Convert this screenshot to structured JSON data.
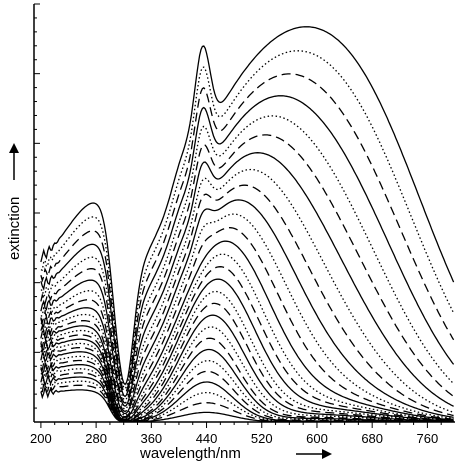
{
  "chart_data": {
    "type": "line",
    "xlabel": "wavelength/nm",
    "ylabel": "extinction",
    "xlim": [
      190,
      800
    ],
    "ylim": [
      0,
      1.0
    ],
    "x_ticks": [
      200,
      280,
      360,
      440,
      520,
      600,
      680,
      760
    ],
    "y_tick_labels_shown": false,
    "grid": false,
    "legend": "none",
    "line_color": "#000000",
    "line_styles_cycle": [
      "solid",
      "dashed",
      "dotted"
    ],
    "series_count": 28,
    "series": [
      {
        "peak_nm": 440,
        "peak_value": 0.023,
        "uv_value": 0.07,
        "style": "solid"
      },
      {
        "peak_nm": 440,
        "peak_value": 0.046,
        "uv_value": 0.08,
        "style": "dashed"
      },
      {
        "peak_nm": 440,
        "peak_value": 0.07,
        "uv_value": 0.089,
        "style": "dotted"
      },
      {
        "peak_nm": 440,
        "peak_value": 0.095,
        "uv_value": 0.098,
        "style": "solid"
      },
      {
        "peak_nm": 441,
        "peak_value": 0.12,
        "uv_value": 0.107,
        "style": "dashed"
      },
      {
        "peak_nm": 442,
        "peak_value": 0.145,
        "uv_value": 0.116,
        "style": "dotted"
      },
      {
        "peak_nm": 443,
        "peak_value": 0.171,
        "uv_value": 0.125,
        "style": "solid"
      },
      {
        "peak_nm": 444,
        "peak_value": 0.197,
        "uv_value": 0.134,
        "style": "dashed"
      },
      {
        "peak_nm": 446,
        "peak_value": 0.223,
        "uv_value": 0.143,
        "style": "dotted"
      },
      {
        "peak_nm": 448,
        "peak_value": 0.25,
        "uv_value": 0.153,
        "style": "solid"
      },
      {
        "peak_nm": 450,
        "peak_value": 0.277,
        "uv_value": 0.162,
        "style": "dashed"
      },
      {
        "peak_nm": 452,
        "peak_value": 0.304,
        "uv_value": 0.171,
        "style": "dotted"
      },
      {
        "peak_nm": 455,
        "peak_value": 0.332,
        "uv_value": 0.18,
        "style": "solid"
      },
      {
        "peak_nm": 458,
        "peak_value": 0.36,
        "uv_value": 0.189,
        "style": "dashed"
      },
      {
        "peak_nm": 461,
        "peak_value": 0.388,
        "uv_value": 0.198,
        "style": "dotted"
      },
      {
        "peak_nm": 465,
        "peak_value": 0.417,
        "uv_value": 0.207,
        "style": "solid"
      },
      {
        "peak_nm": 470,
        "peak_value": 0.447,
        "uv_value": 0.216,
        "style": "dashed"
      },
      {
        "peak_nm": 475,
        "peak_value": 0.477,
        "uv_value": 0.226,
        "style": "dotted"
      },
      {
        "peak_nm": 481,
        "peak_value": 0.508,
        "uv_value": 0.235,
        "style": "solid"
      },
      {
        "peak_nm": 488,
        "peak_value": 0.54,
        "uv_value": 0.244,
        "style": "dashed"
      },
      {
        "peak_nm": 495,
        "peak_value": 0.574,
        "uv_value": 0.253,
        "style": "dotted"
      },
      {
        "peak_nm": 503,
        "peak_value": 0.61,
        "uv_value": 0.262,
        "style": "solid"
      },
      {
        "peak_nm": 511,
        "peak_value": 0.648,
        "uv_value": 0.271,
        "style": "dashed"
      },
      {
        "peak_nm": 518,
        "peak_value": 0.688,
        "uv_value": 0.28,
        "style": "dotted"
      },
      {
        "peak_nm": 526,
        "peak_value": 0.73,
        "uv_value": 0.289,
        "style": "solid"
      },
      {
        "peak_nm": 534,
        "peak_value": 0.775,
        "uv_value": 0.298,
        "style": "dashed"
      },
      {
        "peak_nm": 541,
        "peak_value": 0.822,
        "uv_value": 0.308,
        "style": "dotted"
      },
      {
        "peak_nm": 548,
        "peak_value": 0.87,
        "uv_value": 0.317,
        "style": "solid"
      }
    ]
  }
}
